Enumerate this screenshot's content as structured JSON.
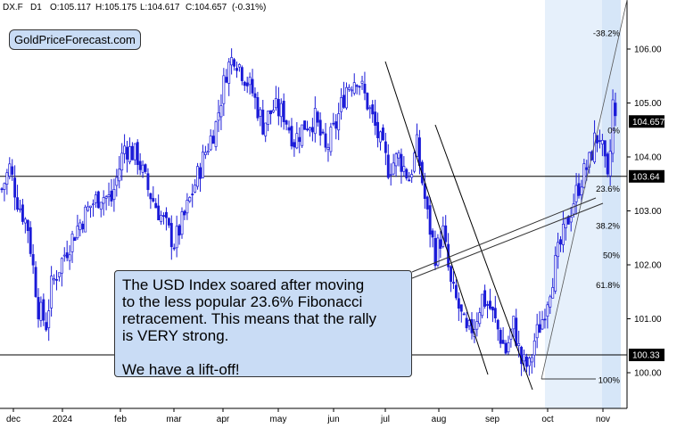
{
  "header": {
    "ticker": "DX.F",
    "timeframe": "D1",
    "open": "O:105.117",
    "high": "H:105.175",
    "low": "L:104.617",
    "close": "C:104.657",
    "change": "(-0.31%)"
  },
  "watermark": "GoldPriceForecast.com",
  "callout": {
    "line1": "The USD Index soared after moving",
    "line2": "to the less popular 23.6% Fibonacci",
    "line3": "retracement. This means that the rally",
    "line4": "is VERY strong.",
    "line5": "We have a lift-off!"
  },
  "colors": {
    "candles": "#1a1ad8",
    "lines": "#000000",
    "fib_zone": "#e6f0fb",
    "callout_fill": "#c9dcf5"
  },
  "chart_data": {
    "type": "candlestick",
    "y_ticks": [
      "100.00",
      "101.00",
      "102.00",
      "103.00",
      "104.00",
      "105.00",
      "106.00"
    ],
    "ylim": [
      99.45,
      106.65
    ],
    "x_ticks": [
      "dec",
      "2024",
      "feb",
      "mar",
      "apr",
      "may",
      "jun",
      "jul",
      "aug",
      "sep",
      "oct",
      "nov"
    ],
    "horizontal_levels": [
      {
        "value": 103.64,
        "label": "103.64"
      },
      {
        "value": 100.33,
        "label": "100.33"
      }
    ],
    "last_price": {
      "value": 104.657,
      "label": "104.657"
    },
    "fibonacci": [
      {
        "label": "-38.2%",
        "value": 106.3
      },
      {
        "label": "0%",
        "value": 104.5
      },
      {
        "label": "23.6%",
        "value": 103.41
      },
      {
        "label": "38.2%",
        "value": 102.73
      },
      {
        "label": "50%",
        "value": 102.18
      },
      {
        "label": "61.8%",
        "value": 101.63
      },
      {
        "label": "100%",
        "value": 99.87
      }
    ],
    "anchors": [
      {
        "i": 0,
        "c": 103.4
      },
      {
        "i": 3,
        "c": 103.8
      },
      {
        "i": 6,
        "c": 103.2
      },
      {
        "i": 10,
        "c": 102.7
      },
      {
        "i": 14,
        "c": 101.2
      },
      {
        "i": 17,
        "c": 100.9
      },
      {
        "i": 19,
        "c": 101.6
      },
      {
        "i": 24,
        "c": 102.2
      },
      {
        "i": 29,
        "c": 102.7
      },
      {
        "i": 34,
        "c": 103.1
      },
      {
        "i": 38,
        "c": 103.3
      },
      {
        "i": 42,
        "c": 103.2
      },
      {
        "i": 47,
        "c": 104.2
      },
      {
        "i": 52,
        "c": 104.0
      },
      {
        "i": 56,
        "c": 103.4
      },
      {
        "i": 60,
        "c": 103.0
      },
      {
        "i": 63,
        "c": 102.7
      },
      {
        "i": 66,
        "c": 102.4
      },
      {
        "i": 70,
        "c": 102.9
      },
      {
        "i": 74,
        "c": 103.5
      },
      {
        "i": 78,
        "c": 104.1
      },
      {
        "i": 82,
        "c": 104.6
      },
      {
        "i": 86,
        "c": 105.6
      },
      {
        "i": 89,
        "c": 105.9
      },
      {
        "i": 92,
        "c": 105.6
      },
      {
        "i": 96,
        "c": 105.2
      },
      {
        "i": 100,
        "c": 104.6
      },
      {
        "i": 104,
        "c": 104.9
      },
      {
        "i": 108,
        "c": 104.8
      },
      {
        "i": 112,
        "c": 104.3
      },
      {
        "i": 116,
        "c": 104.6
      },
      {
        "i": 120,
        "c": 104.7
      },
      {
        "i": 124,
        "c": 104.1
      },
      {
        "i": 128,
        "c": 104.6
      },
      {
        "i": 132,
        "c": 105.3
      },
      {
        "i": 136,
        "c": 105.5
      },
      {
        "i": 140,
        "c": 105.0
      },
      {
        "i": 144,
        "c": 104.4
      },
      {
        "i": 148,
        "c": 103.8
      },
      {
        "i": 152,
        "c": 104.0
      },
      {
        "i": 156,
        "c": 103.6
      },
      {
        "i": 159,
        "c": 104.2
      },
      {
        "i": 163,
        "c": 102.9
      },
      {
        "i": 166,
        "c": 102.2
      },
      {
        "i": 169,
        "c": 102.6
      },
      {
        "i": 172,
        "c": 101.6
      },
      {
        "i": 175,
        "c": 101.2
      },
      {
        "i": 178,
        "c": 100.7
      },
      {
        "i": 181,
        "c": 100.9
      },
      {
        "i": 184,
        "c": 101.4
      },
      {
        "i": 187,
        "c": 101.2
      },
      {
        "i": 190,
        "c": 100.8
      },
      {
        "i": 193,
        "c": 100.4
      },
      {
        "i": 196,
        "c": 100.9
      },
      {
        "i": 199,
        "c": 100.2
      },
      {
        "i": 202,
        "c": 100.1
      },
      {
        "i": 204,
        "c": 100.6
      },
      {
        "i": 207,
        "c": 101.0
      },
      {
        "i": 210,
        "c": 101.6
      },
      {
        "i": 213,
        "c": 102.2
      },
      {
        "i": 216,
        "c": 102.7
      },
      {
        "i": 219,
        "c": 103.2
      },
      {
        "i": 222,
        "c": 103.6
      },
      {
        "i": 225,
        "c": 103.9
      },
      {
        "i": 227,
        "c": 104.3
      },
      {
        "i": 229,
        "c": 104.4
      },
      {
        "i": 231,
        "c": 103.8
      },
      {
        "i": 232,
        "c": 103.5
      },
      {
        "i": 233,
        "c": 104.1
      },
      {
        "i": 234,
        "c": 105.0
      },
      {
        "i": 235,
        "c": 104.66
      }
    ]
  }
}
